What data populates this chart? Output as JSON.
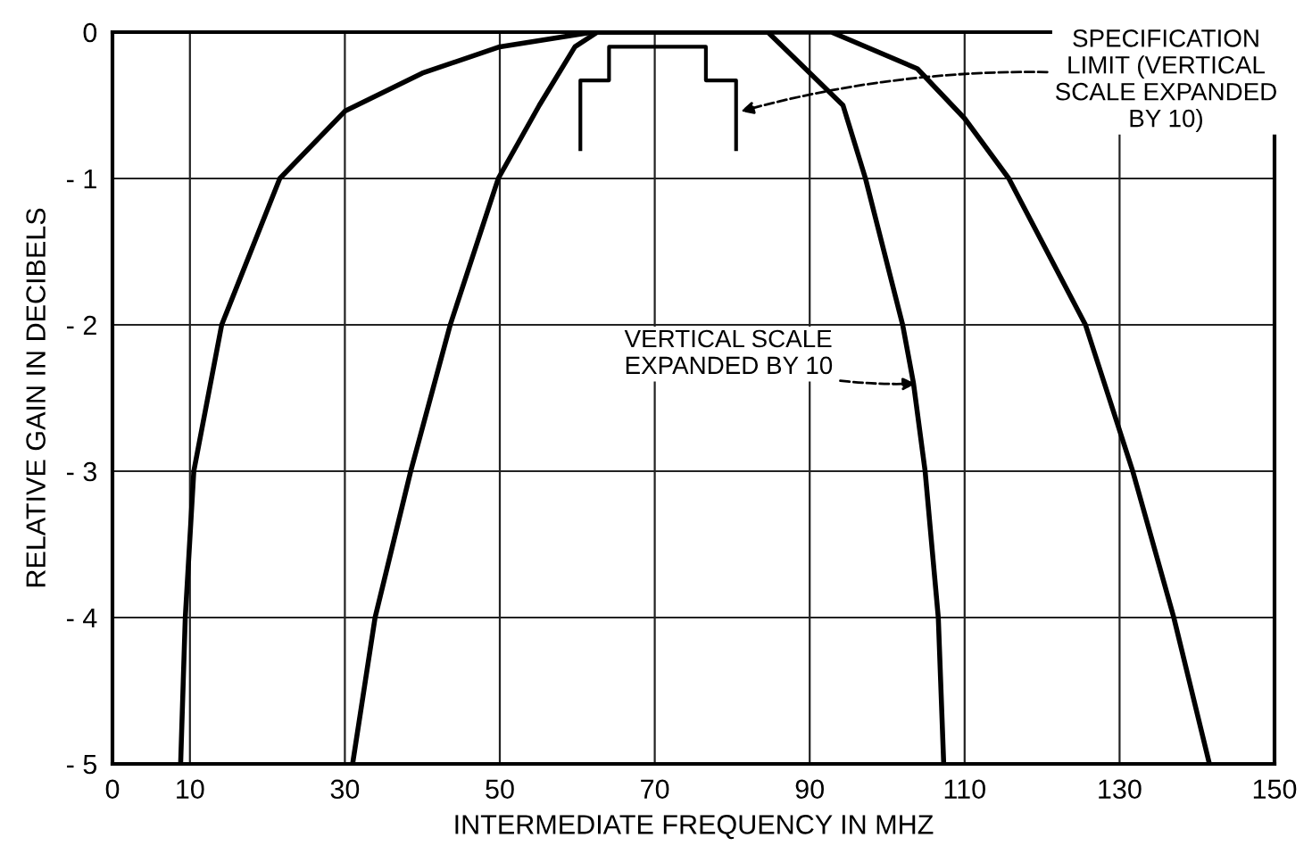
{
  "chart_data": {
    "type": "line",
    "xlabel": "INTERMEDIATE FREQUENCY IN MHZ",
    "ylabel": "RELATIVE GAIN IN DECIBELS",
    "xlim": [
      0,
      150
    ],
    "ylim": [
      -5,
      0
    ],
    "xticks": [
      0,
      10,
      30,
      50,
      70,
      90,
      110,
      130,
      150
    ],
    "yticks": [
      0,
      -1,
      -2,
      -3,
      -4,
      -5
    ],
    "grid": true,
    "marker": "none",
    "line_style": "solid",
    "series": [
      {
        "color": "#000000",
        "x": [
          8.8,
          9.4,
          10.5,
          14.1,
          21.6,
          30,
          40,
          50,
          62,
          70,
          80,
          92.8,
          103.9,
          110,
          115.7,
          125.6,
          131.7,
          137,
          141.6
        ],
        "values": [
          -5,
          -4,
          -3,
          -2,
          -1,
          -0.54,
          -0.28,
          -0.1,
          0,
          0,
          0,
          0,
          -0.25,
          -0.59,
          -1,
          -2,
          -3,
          -4,
          -5
        ]
      },
      {
        "color": "#000000",
        "x": [
          31.0,
          33.9,
          38.5,
          43.6,
          49.8,
          55.1,
          59.7,
          62.6,
          70,
          84.6,
          94.3,
          97.2,
          102,
          103.4,
          104.9,
          106.6,
          107.3
        ],
        "values": [
          -5,
          -4,
          -3,
          -2,
          -1,
          -0.5,
          -0.1,
          0,
          0,
          0,
          -0.5,
          -1,
          -2,
          -2.4,
          -3,
          -4,
          -5
        ]
      },
      {
        "color": "#000000",
        "x": [
          60.4,
          60.4,
          64.1,
          64.1,
          76.6,
          76.6,
          80.5,
          80.5
        ],
        "values": [
          -0.8,
          -0.33,
          -0.33,
          -0.1,
          -0.1,
          -0.33,
          -0.33,
          -0.8
        ]
      }
    ],
    "annotations": [
      {
        "text": "SPECIFICATION\nLIMIT (VERTICAL\nSCALE EXPANDED\nBY 10)",
        "x": 80.5,
        "y": -0.55
      },
      {
        "text": "VERTICAL SCALE\nEXPANDED BY 10",
        "x": 104.3,
        "y": -2.4
      }
    ]
  }
}
